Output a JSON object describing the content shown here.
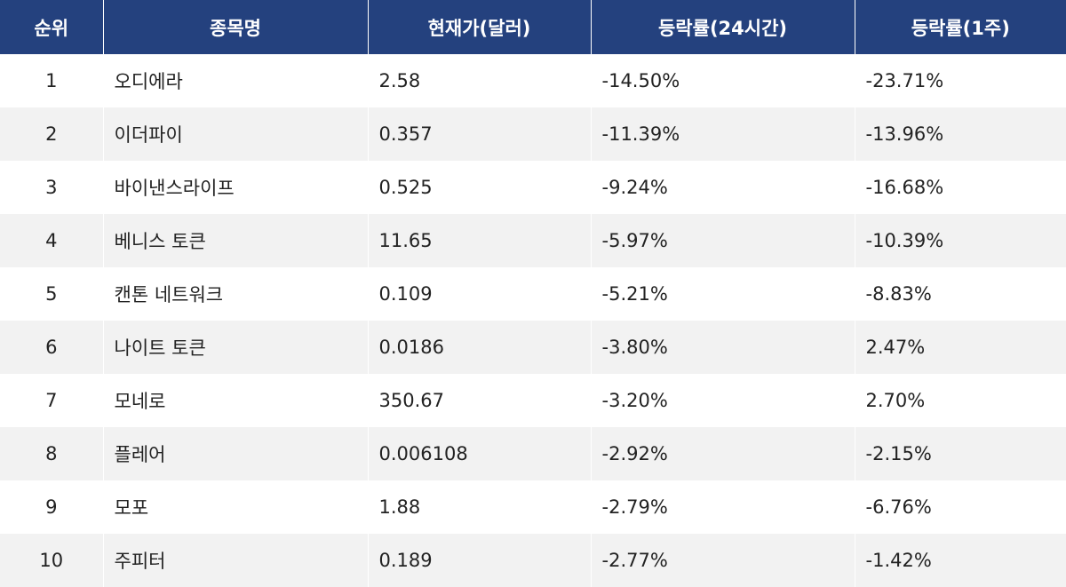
{
  "table": {
    "headers": [
      "순위",
      "종목명",
      "현재가(달러)",
      "등락률(24시간)",
      "등락률(1주)"
    ],
    "rows": [
      [
        "1",
        "오디에라",
        "2.58",
        "-14.50%",
        "-23.71%"
      ],
      [
        "2",
        "이더파이",
        "0.357",
        "-11.39%",
        "-13.96%"
      ],
      [
        "3",
        "바이낸스라이프",
        "0.525",
        "-9.24%",
        "-16.68%"
      ],
      [
        "4",
        "베니스 토큰",
        "11.65",
        "-5.97%",
        "-10.39%"
      ],
      [
        "5",
        "캔톤 네트워크",
        "0.109",
        "-5.21%",
        "-8.83%"
      ],
      [
        "6",
        "나이트 토큰",
        "0.0186",
        "-3.80%",
        "2.47%"
      ],
      [
        "7",
        "모네로",
        "350.67",
        "-3.20%",
        "2.70%"
      ],
      [
        "8",
        "플레어",
        "0.006108",
        "-2.92%",
        "-2.15%"
      ],
      [
        "9",
        "모포",
        "1.88",
        "-2.79%",
        "-6.76%"
      ],
      [
        "10",
        "주피터",
        "0.189",
        "-2.77%",
        "-1.42%"
      ]
    ],
    "colors": {
      "header_bg": "#24417e",
      "header_text": "#ffffff",
      "stripe_bg": "#f2f2f2"
    }
  }
}
